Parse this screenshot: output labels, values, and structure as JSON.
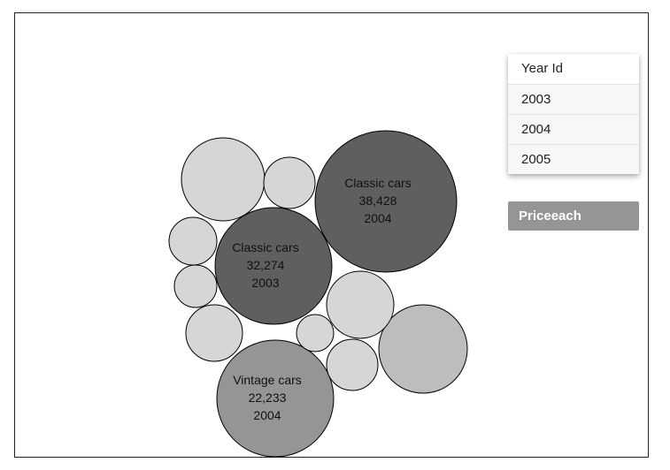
{
  "legend": {
    "title": "Year Id",
    "items": [
      "2003",
      "2004",
      "2005"
    ]
  },
  "measure_button": {
    "label": "Priceeach"
  },
  "colors": {
    "fill_2003": "#5f5f5f",
    "fill_2004_top": "#5f5f5f",
    "fill_2004_vintage": "#959595",
    "fill_light": "#d6d6d6",
    "fill_mid": "#bdbdbd",
    "stroke": "#000000",
    "button_bg": "#959595"
  },
  "chart_data": {
    "type": "bubble",
    "bubbles": [
      {
        "id": "classic-2004",
        "category": "Classic cars",
        "value_text": "38,428",
        "year": "2004",
        "labeled": true,
        "color": "#5f5f5f"
      },
      {
        "id": "classic-2003",
        "category": "Classic cars",
        "value_text": "32,274",
        "year": "2003",
        "labeled": true,
        "color": "#5f5f5f"
      },
      {
        "id": "vintage-2004",
        "category": "Vintage cars",
        "value_text": "22,233",
        "year": "2004",
        "labeled": true,
        "color": "#959595"
      },
      {
        "id": "b4",
        "labeled": false,
        "color": "#bdbdbd"
      },
      {
        "id": "b5",
        "labeled": false,
        "color": "#d6d6d6"
      },
      {
        "id": "b6",
        "labeled": false,
        "color": "#d6d6d6"
      },
      {
        "id": "b7",
        "labeled": false,
        "color": "#d6d6d6"
      },
      {
        "id": "b8",
        "labeled": false,
        "color": "#d6d6d6"
      },
      {
        "id": "b9",
        "labeled": false,
        "color": "#d6d6d6"
      },
      {
        "id": "b10",
        "labeled": false,
        "color": "#d6d6d6"
      },
      {
        "id": "b11",
        "labeled": false,
        "color": "#d6d6d6"
      },
      {
        "id": "b12",
        "labeled": false,
        "color": "#d6d6d6"
      },
      {
        "id": "b13",
        "labeled": false,
        "color": "#d6d6d6"
      }
    ]
  }
}
